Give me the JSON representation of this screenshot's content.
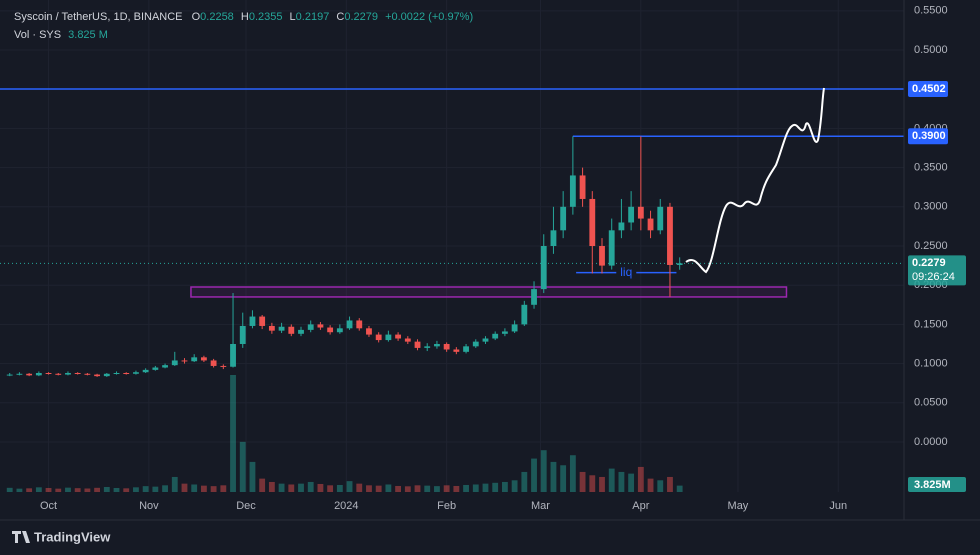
{
  "chart_data": {
    "type": "candlestick",
    "title": "Syscoin / TetherUS, 1D, BINANCE",
    "ohlc": [
      {
        "label": "O",
        "value": 0.2258
      },
      {
        "label": "H",
        "value": 0.2355
      },
      {
        "label": "L",
        "value": 0.2197
      },
      {
        "label": "C",
        "value": 0.2279
      }
    ],
    "change": "+0.0022 (+0.97%)",
    "volume_title": "Vol · SYS",
    "volume_header": "3.825 M",
    "volume_tag": "3.825M",
    "x": [
      -12,
      -9,
      -6,
      -3,
      0,
      3,
      6,
      9,
      12,
      15,
      18,
      21,
      24,
      27,
      30,
      33,
      36,
      39,
      42,
      45,
      48,
      51,
      54,
      57,
      60,
      63,
      66,
      69,
      72,
      75,
      78,
      81,
      84,
      87,
      90,
      93,
      96,
      99,
      102,
      105,
      108,
      111,
      114,
      117,
      120,
      123,
      126,
      129,
      132,
      135,
      138,
      141,
      144,
      147,
      150,
      153,
      156,
      159,
      162,
      165,
      168,
      171,
      174,
      177,
      180,
      183,
      186,
      189,
      192,
      195
    ],
    "open": [
      0.085,
      0.086,
      0.087,
      0.085,
      0.088,
      0.087,
      0.086,
      0.088,
      0.087,
      0.086,
      0.084,
      0.087,
      0.088,
      0.087,
      0.089,
      0.092,
      0.095,
      0.098,
      0.104,
      0.103,
      0.108,
      0.104,
      0.097,
      0.096,
      0.125,
      0.148,
      0.16,
      0.148,
      0.142,
      0.147,
      0.138,
      0.143,
      0.15,
      0.146,
      0.14,
      0.145,
      0.155,
      0.145,
      0.137,
      0.13,
      0.137,
      0.132,
      0.128,
      0.12,
      0.122,
      0.125,
      0.118,
      0.115,
      0.122,
      0.128,
      0.132,
      0.138,
      0.141,
      0.15,
      0.175,
      0.195,
      0.25,
      0.27,
      0.3,
      0.34,
      0.31,
      0.25,
      0.225,
      0.27,
      0.28,
      0.3,
      0.285,
      0.27,
      0.3,
      0.2258
    ],
    "high": [
      0.088,
      0.089,
      0.088,
      0.09,
      0.089,
      0.088,
      0.09,
      0.089,
      0.088,
      0.087,
      0.088,
      0.09,
      0.089,
      0.091,
      0.094,
      0.097,
      0.1,
      0.115,
      0.107,
      0.112,
      0.11,
      0.106,
      0.099,
      0.19,
      0.165,
      0.168,
      0.162,
      0.152,
      0.152,
      0.15,
      0.147,
      0.155,
      0.153,
      0.149,
      0.15,
      0.16,
      0.158,
      0.148,
      0.14,
      0.142,
      0.14,
      0.135,
      0.131,
      0.126,
      0.129,
      0.127,
      0.121,
      0.125,
      0.131,
      0.135,
      0.141,
      0.145,
      0.155,
      0.18,
      0.205,
      0.265,
      0.3,
      0.32,
      0.39,
      0.35,
      0.32,
      0.26,
      0.285,
      0.31,
      0.32,
      0.39,
      0.295,
      0.31,
      0.305,
      0.2355
    ],
    "low": [
      0.084,
      0.085,
      0.084,
      0.084,
      0.086,
      0.085,
      0.085,
      0.086,
      0.085,
      0.083,
      0.083,
      0.086,
      0.086,
      0.086,
      0.088,
      0.091,
      0.094,
      0.097,
      0.1,
      0.102,
      0.102,
      0.095,
      0.093,
      0.095,
      0.12,
      0.145,
      0.144,
      0.138,
      0.139,
      0.135,
      0.135,
      0.14,
      0.143,
      0.137,
      0.138,
      0.143,
      0.142,
      0.134,
      0.127,
      0.128,
      0.129,
      0.125,
      0.117,
      0.116,
      0.119,
      0.115,
      0.112,
      0.113,
      0.12,
      0.125,
      0.13,
      0.135,
      0.139,
      0.148,
      0.17,
      0.19,
      0.24,
      0.26,
      0.29,
      0.3,
      0.215,
      0.215,
      0.22,
      0.26,
      0.27,
      0.27,
      0.26,
      0.265,
      0.185,
      0.2197
    ],
    "close": [
      0.086,
      0.087,
      0.085,
      0.088,
      0.087,
      0.086,
      0.088,
      0.087,
      0.086,
      0.084,
      0.087,
      0.088,
      0.087,
      0.089,
      0.092,
      0.095,
      0.098,
      0.104,
      0.103,
      0.108,
      0.104,
      0.097,
      0.096,
      0.125,
      0.148,
      0.16,
      0.148,
      0.142,
      0.147,
      0.138,
      0.143,
      0.15,
      0.146,
      0.14,
      0.145,
      0.155,
      0.145,
      0.137,
      0.13,
      0.137,
      0.132,
      0.128,
      0.12,
      0.122,
      0.125,
      0.118,
      0.115,
      0.122,
      0.128,
      0.132,
      0.138,
      0.141,
      0.15,
      0.175,
      0.195,
      0.25,
      0.27,
      0.3,
      0.34,
      0.31,
      0.25,
      0.225,
      0.27,
      0.28,
      0.3,
      0.285,
      0.27,
      0.3,
      0.2258,
      0.2279
    ],
    "volume": [
      2.5,
      2,
      2.2,
      2.8,
      2.4,
      2,
      2.6,
      2.3,
      2.1,
      2.5,
      3,
      2.4,
      2.2,
      2.8,
      3.5,
      3.2,
      4,
      9,
      5,
      4.5,
      3.8,
      3.5,
      4,
      70,
      30,
      18,
      8,
      6,
      5,
      4.5,
      5,
      6,
      4.8,
      4,
      4.2,
      6.5,
      5,
      4,
      3.8,
      4.5,
      3.6,
      3.4,
      4,
      3.8,
      3.5,
      4,
      3.6,
      4.2,
      4.5,
      5,
      5.5,
      6,
      7,
      12,
      20,
      25,
      18,
      16,
      22,
      12,
      10,
      9,
      14,
      12,
      11,
      15,
      8,
      7,
      9,
      3.825
    ],
    "up_color": "#26a69a",
    "down_color": "#ef5350",
    "xlim": [
      -15,
      264
    ],
    "xticks": [
      {
        "value": 0,
        "label": "Oct"
      },
      {
        "value": 31,
        "label": "Nov"
      },
      {
        "value": 61,
        "label": "Dec"
      },
      {
        "value": 92,
        "label": "2024"
      },
      {
        "value": 123,
        "label": "Feb"
      },
      {
        "value": 152,
        "label": "Mar"
      },
      {
        "value": 183,
        "label": "Apr"
      },
      {
        "value": 213,
        "label": "May"
      },
      {
        "value": 244,
        "label": "Jun"
      }
    ],
    "ylim": [
      -0.0638,
      0.5638
    ],
    "yticks": [
      {
        "value": 0,
        "label": "0.0000"
      },
      {
        "value": 0.05,
        "label": "0.0500"
      },
      {
        "value": 0.1,
        "label": "0.1000"
      },
      {
        "value": 0.15,
        "label": "0.1500"
      },
      {
        "value": 0.2,
        "label": "0.2000"
      },
      {
        "value": 0.25,
        "label": "0.2500"
      },
      {
        "value": 0.3,
        "label": "0.3000"
      },
      {
        "value": 0.35,
        "label": "0.3500"
      },
      {
        "value": 0.4,
        "label": "0.4000"
      },
      {
        "value": 0.45,
        "label": "0.4500"
      },
      {
        "value": 0.5,
        "label": "0.5000"
      },
      {
        "value": 0.55,
        "label": "0.5500"
      }
    ],
    "grid": true,
    "levels": [
      {
        "value": 0.4502,
        "start": -15,
        "color": "#2962ff"
      },
      {
        "value": 0.39,
        "label": "0.3900",
        "start": 162,
        "color": "#2962ff"
      }
    ],
    "zone": {
      "low": 0.185,
      "high": 0.1977,
      "start": 44,
      "end": 228,
      "color": "#9c27b0"
    },
    "liq": {
      "value": 0.216,
      "label": "liq",
      "start": 163,
      "end": 194,
      "color": "#2962ff"
    },
    "last_price": {
      "value": 0.2279,
      "countdown": "09:26:24"
    }
  },
  "footer": {
    "brand": "TradingView"
  }
}
